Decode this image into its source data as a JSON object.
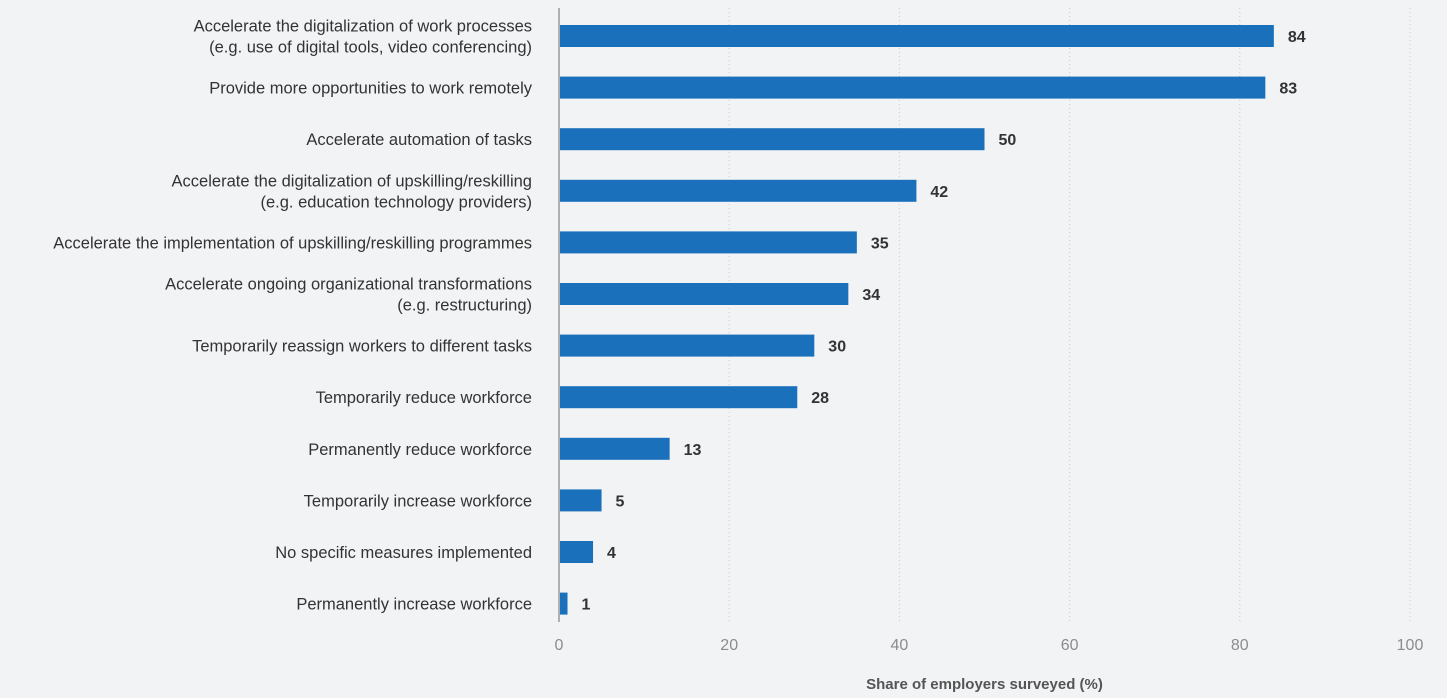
{
  "chart_data": {
    "type": "bar",
    "orientation": "horizontal",
    "categories": [
      [
        "Accelerate the digitalization of work processes",
        "(e.g. use of digital tools, video conferencing)"
      ],
      [
        "Provide more opportunities to work remotely"
      ],
      [
        "Accelerate automation of tasks"
      ],
      [
        "Accelerate the digitalization of upskilling/reskilling",
        "(e.g. education technology providers)"
      ],
      [
        "Accelerate the implementation of upskilling/reskilling programmes"
      ],
      [
        "Accelerate ongoing organizational transformations",
        "(e.g. restructuring)"
      ],
      [
        "Temporarily reassign workers to different tasks"
      ],
      [
        "Temporarily reduce workforce"
      ],
      [
        "Permanently reduce workforce"
      ],
      [
        "Temporarily increase workforce"
      ],
      [
        "No specific measures implemented"
      ],
      [
        "Permanently increase workforce"
      ]
    ],
    "values": [
      84,
      83,
      50,
      42,
      35,
      34,
      30,
      28,
      13,
      5,
      4,
      1
    ],
    "xlabel": "Share of employers surveyed (%)",
    "ylabel": "",
    "title": "",
    "xlim": [
      0,
      100
    ],
    "xticks": [
      0,
      20,
      40,
      60,
      80,
      100
    ],
    "grid": true,
    "data_labels": true,
    "bar_color": "#1a70bb"
  }
}
